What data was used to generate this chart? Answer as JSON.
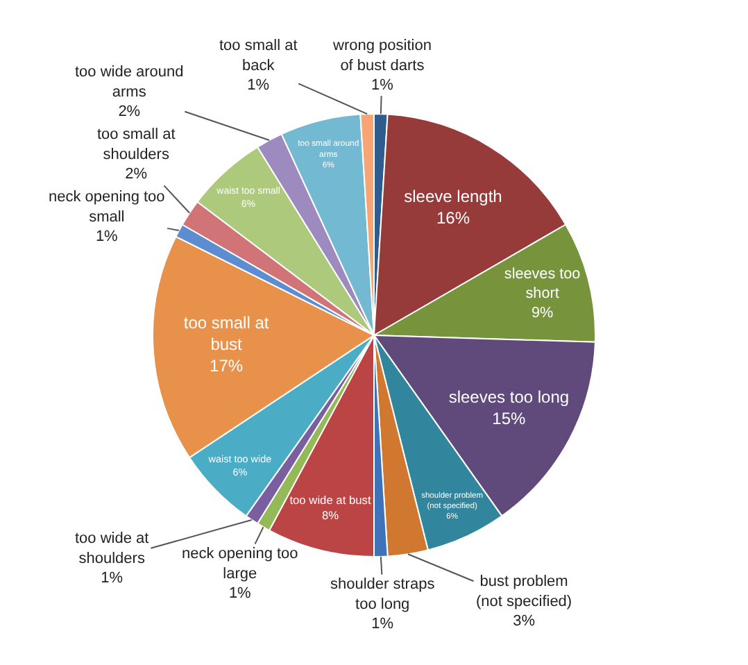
{
  "chart_data": {
    "type": "pie",
    "categories": [
      "wrong position of bust darts",
      "sleeve length",
      "sleeves too short",
      "sleeves too long",
      "shoulder problem (not specified)",
      "bust problem (not specified)",
      "shoulder straps too long",
      "too wide at bust",
      "neck opening too large",
      "too wide at shoulders",
      "waist too wide",
      "too small at bust",
      "neck opening too small",
      "too small at shoulders",
      "waist too small",
      "too wide around arms",
      "too small around arms",
      "too small at back"
    ],
    "values": [
      1,
      16,
      9,
      15,
      6,
      3,
      1,
      8,
      1,
      1,
      6,
      17,
      1,
      2,
      6,
      2,
      6,
      1
    ],
    "value_labels": [
      "1%",
      "16%",
      "9%",
      "15%",
      "6%",
      "3%",
      "1%",
      "8%",
      "1%",
      "1%",
      "6%",
      "17%",
      "1%",
      "2%",
      "6%",
      "2%",
      "6%",
      "1%"
    ],
    "colors": [
      "#2e5c8f",
      "#963a3a",
      "#77933c",
      "#5f4a7b",
      "#31859c",
      "#d07830",
      "#3f72b8",
      "#bb4445",
      "#94b958",
      "#7a5fa0",
      "#4bacc6",
      "#e8914a",
      "#5b8dd0",
      "#d07478",
      "#adc97c",
      "#9d8abf",
      "#74b9d2",
      "#f7a574"
    ],
    "legend": false
  }
}
